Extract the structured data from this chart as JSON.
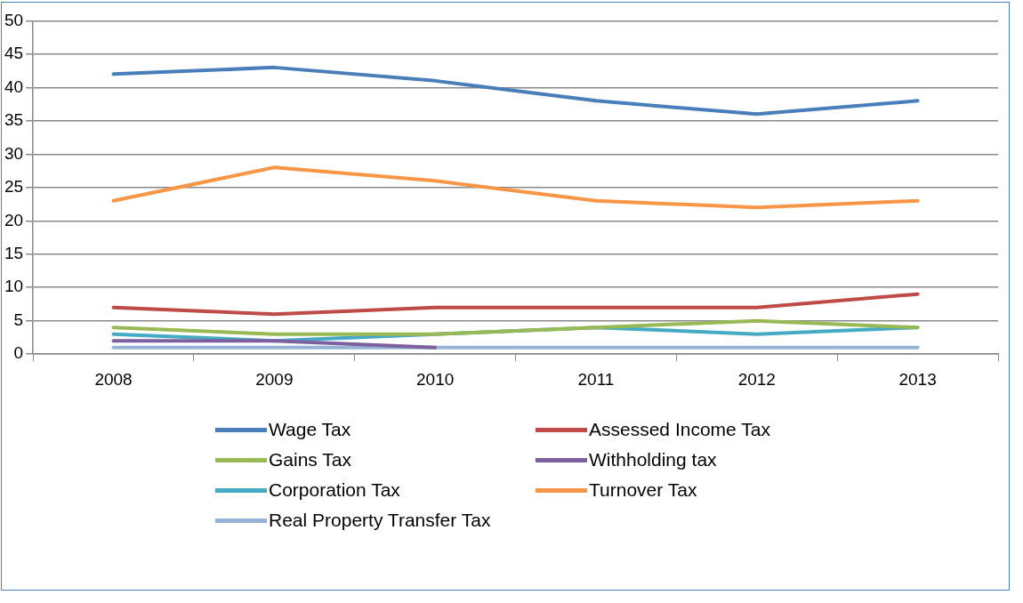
{
  "chart_data": {
    "type": "line",
    "categories": [
      "2008",
      "2009",
      "2010",
      "2011",
      "2012",
      "2013"
    ],
    "series": [
      {
        "name": "Wage Tax",
        "color": "#4a7ebb",
        "values": [
          42,
          43,
          41,
          38,
          36,
          38
        ]
      },
      {
        "name": "Assessed Income Tax",
        "color": "#be4b48",
        "values": [
          7,
          6,
          7,
          7,
          7,
          9
        ]
      },
      {
        "name": "Gains Tax",
        "color": "#98b954",
        "values": [
          4,
          3,
          3,
          4,
          5,
          4
        ]
      },
      {
        "name": "Withholding tax",
        "color": "#7d60a0",
        "values": [
          2,
          2,
          1,
          null,
          null,
          null
        ]
      },
      {
        "name": "Corporation Tax",
        "color": "#46aac5",
        "values": [
          3,
          2,
          3,
          4,
          3,
          4
        ]
      },
      {
        "name": "Turnover Tax",
        "color": "#f79646",
        "values": [
          23,
          28,
          26,
          23,
          22,
          23
        ]
      },
      {
        "name": "Real Property Transfer Tax",
        "color": "#95b3d7",
        "values": [
          1,
          1,
          1,
          1,
          1,
          1
        ]
      }
    ],
    "ylim": [
      0,
      50
    ],
    "yticks": [
      0,
      5,
      10,
      15,
      20,
      25,
      30,
      35,
      40,
      45,
      50
    ],
    "grid": "y",
    "legend": "bottom",
    "marker": "none",
    "line_style": "solid"
  }
}
